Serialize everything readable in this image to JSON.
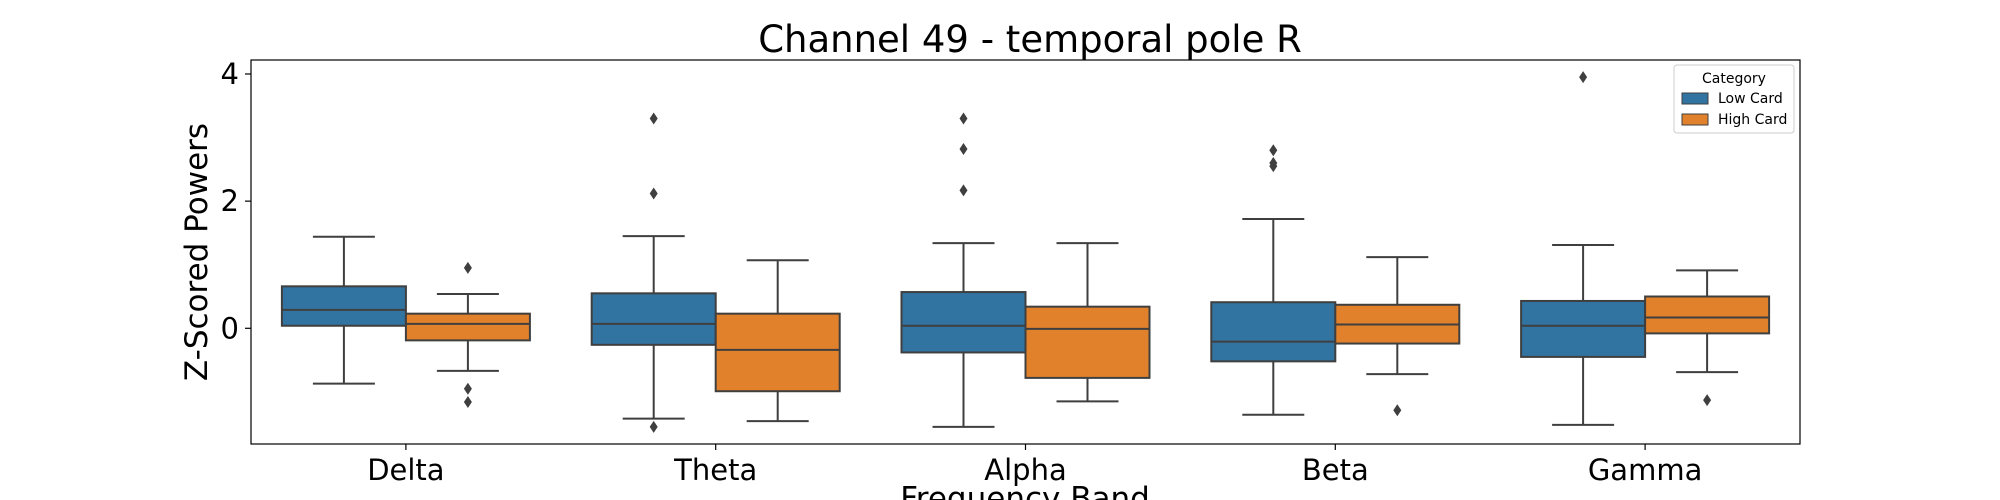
{
  "chart_data": {
    "type": "box",
    "title": "Channel 49 - temporal pole R",
    "xlabel": "Frequency Band",
    "ylabel": "Z-Scored Powers",
    "ylim": [
      -1.82,
      4.22
    ],
    "yticks": [
      0,
      2,
      4
    ],
    "categories": [
      "Delta",
      "Theta",
      "Alpha",
      "Beta",
      "Gamma"
    ],
    "grid": false,
    "legend": {
      "title": "Category",
      "position": "top-right"
    },
    "series": [
      {
        "name": "Low Card",
        "color": "#3274a1",
        "boxes": [
          {
            "whisker_low": -0.87,
            "q1": 0.04,
            "median": 0.29,
            "q3": 0.66,
            "whisker_high": 1.44,
            "outliers": []
          },
          {
            "whisker_low": -1.42,
            "q1": -0.26,
            "median": 0.07,
            "q3": 0.55,
            "whisker_high": 1.45,
            "outliers": [
              3.3,
              2.12,
              -1.55
            ]
          },
          {
            "whisker_low": -1.55,
            "q1": -0.38,
            "median": 0.04,
            "q3": 0.57,
            "whisker_high": 1.34,
            "outliers": [
              3.3,
              2.82,
              2.17
            ]
          },
          {
            "whisker_low": -1.36,
            "q1": -0.52,
            "median": -0.21,
            "q3": 0.41,
            "whisker_high": 1.72,
            "outliers": [
              2.8,
              2.6,
              2.55
            ]
          },
          {
            "whisker_low": -1.52,
            "q1": -0.45,
            "median": 0.04,
            "q3": 0.43,
            "whisker_high": 1.31,
            "outliers": [
              3.95
            ]
          }
        ]
      },
      {
        "name": "High Card",
        "color": "#e1812c",
        "boxes": [
          {
            "whisker_low": -0.67,
            "q1": -0.19,
            "median": 0.07,
            "q3": 0.23,
            "whisker_high": 0.54,
            "outliers": [
              0.95,
              -0.95,
              -1.16
            ]
          },
          {
            "whisker_low": -1.46,
            "q1": -0.99,
            "median": -0.34,
            "q3": 0.23,
            "whisker_high": 1.07,
            "outliers": []
          },
          {
            "whisker_low": -1.15,
            "q1": -0.78,
            "median": -0.01,
            "q3": 0.34,
            "whisker_high": 1.34,
            "outliers": []
          },
          {
            "whisker_low": -0.72,
            "q1": -0.24,
            "median": 0.06,
            "q3": 0.37,
            "whisker_high": 1.12,
            "outliers": [
              -1.29
            ]
          },
          {
            "whisker_low": -0.69,
            "q1": -0.08,
            "median": 0.17,
            "q3": 0.5,
            "whisker_high": 0.91,
            "outliers": [
              -1.13
            ]
          }
        ]
      }
    ]
  }
}
